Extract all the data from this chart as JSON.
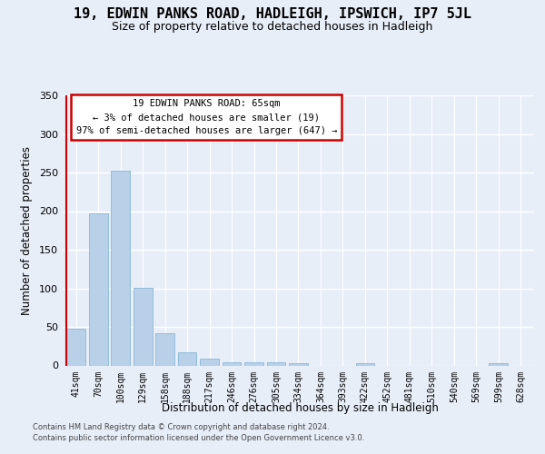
{
  "title_line1": "19, EDWIN PANKS ROAD, HADLEIGH, IPSWICH, IP7 5JL",
  "title_line2": "Size of property relative to detached houses in Hadleigh",
  "xlabel": "Distribution of detached houses by size in Hadleigh",
  "ylabel": "Number of detached properties",
  "categories": [
    "41sqm",
    "70sqm",
    "100sqm",
    "129sqm",
    "158sqm",
    "188sqm",
    "217sqm",
    "246sqm",
    "276sqm",
    "305sqm",
    "334sqm",
    "364sqm",
    "393sqm",
    "422sqm",
    "452sqm",
    "481sqm",
    "510sqm",
    "540sqm",
    "569sqm",
    "599sqm",
    "628sqm"
  ],
  "values": [
    48,
    197,
    252,
    101,
    42,
    17,
    9,
    4,
    4,
    4,
    3,
    0,
    0,
    3,
    0,
    0,
    0,
    0,
    0,
    3,
    0
  ],
  "bar_color": "#b8d0e8",
  "bar_edge_color": "#7aafd4",
  "highlight_color": "#cc0000",
  "annotation_text": "19 EDWIN PANKS ROAD: 65sqm\n← 3% of detached houses are smaller (19)\n97% of semi-detached houses are larger (647) →",
  "annotation_box_facecolor": "#ffffff",
  "annotation_box_edgecolor": "#cc0000",
  "ylim": [
    0,
    350
  ],
  "yticks": [
    0,
    50,
    100,
    150,
    200,
    250,
    300,
    350
  ],
  "footer_line1": "Contains HM Land Registry data © Crown copyright and database right 2024.",
  "footer_line2": "Contains public sector information licensed under the Open Government Licence v3.0.",
  "background_color": "#e8eef8",
  "grid_color": "#ffffff"
}
